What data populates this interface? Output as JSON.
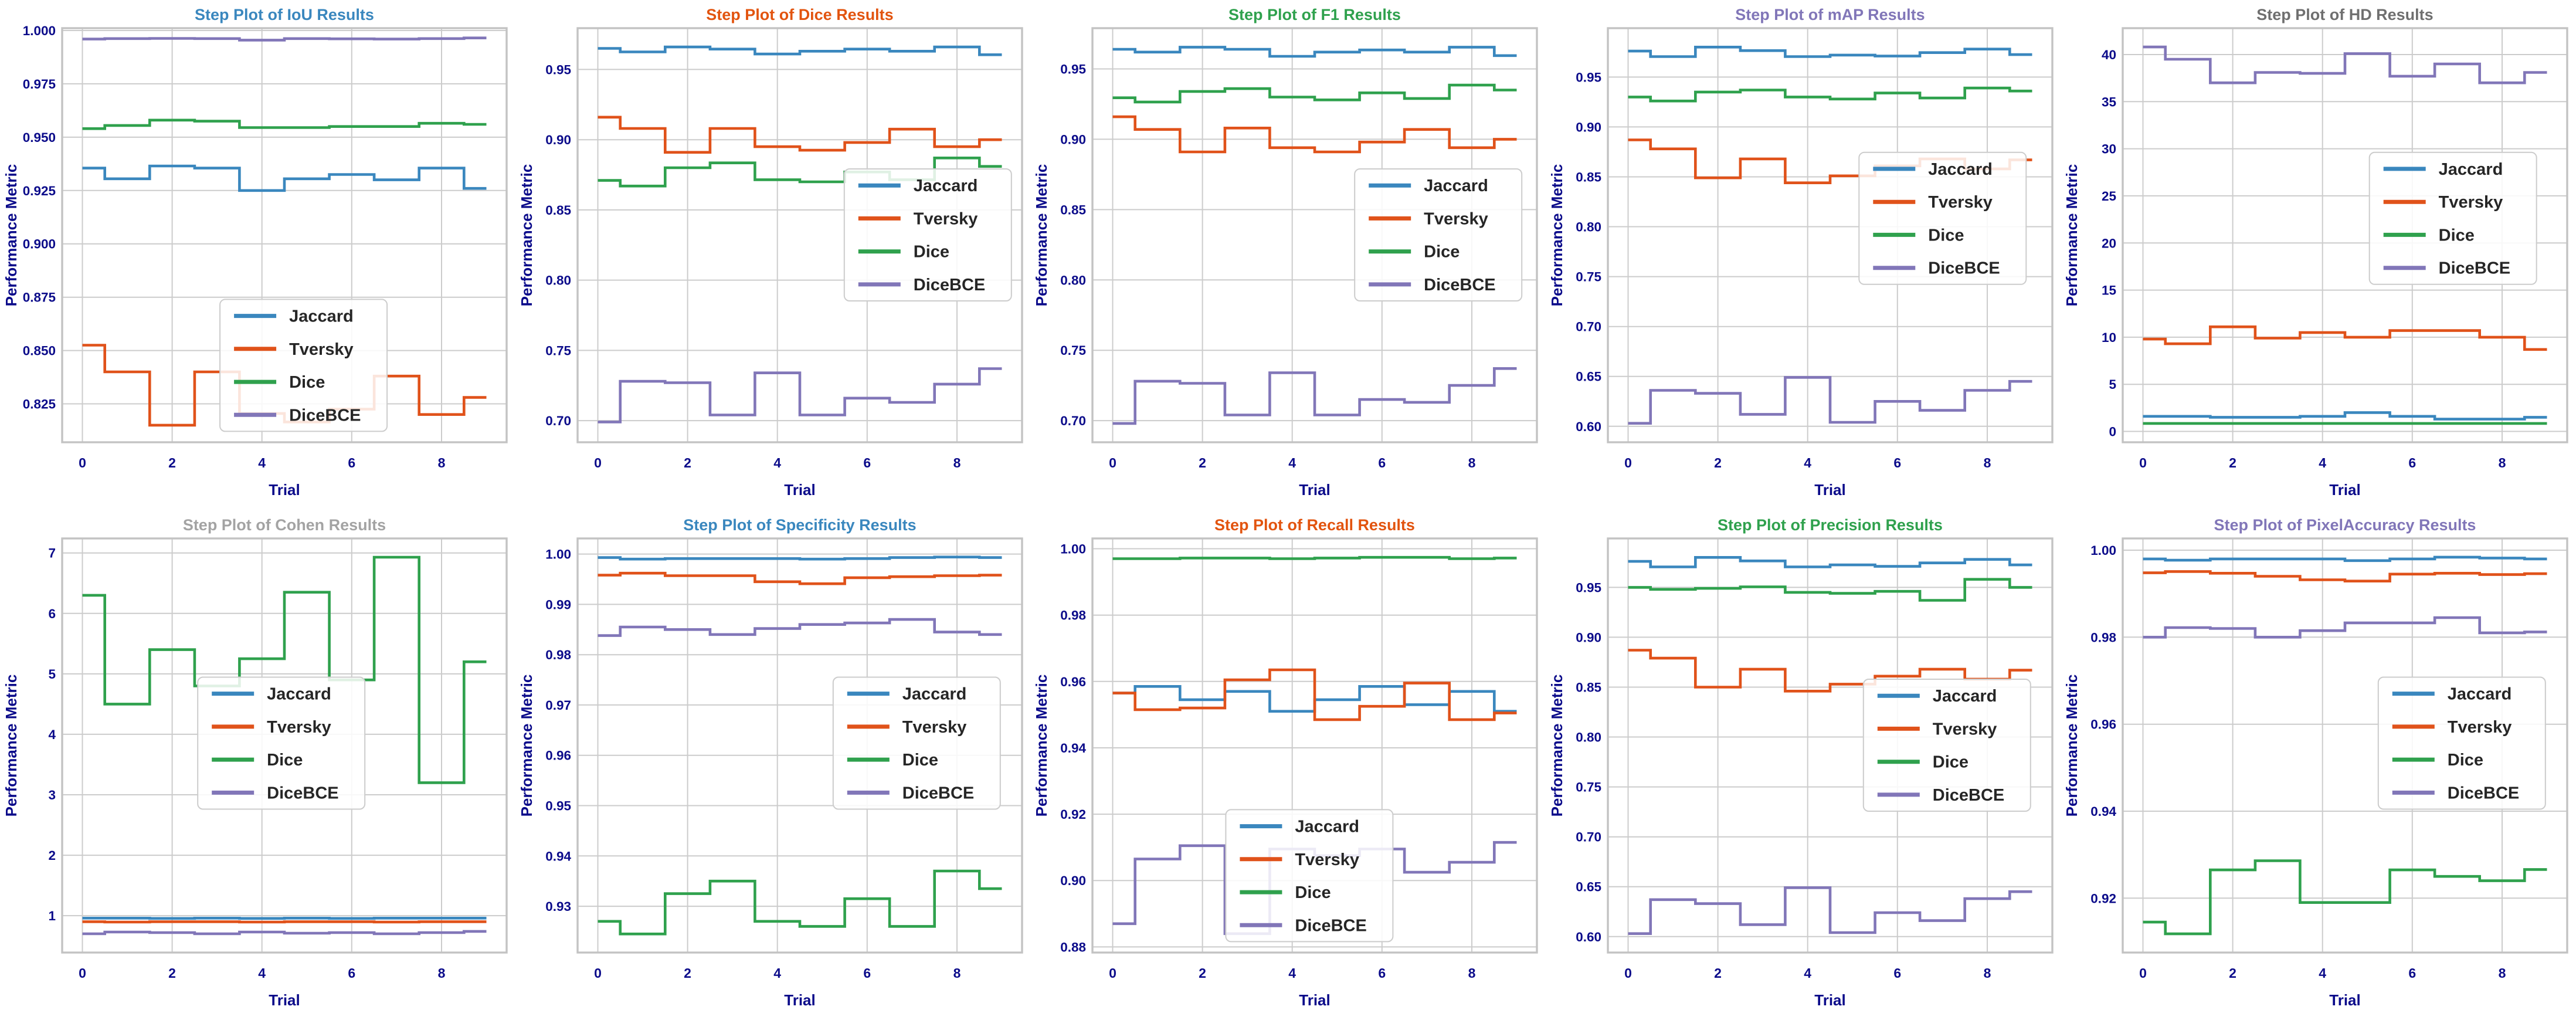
{
  "figure": {
    "background": "#ffffff",
    "grid_color": "#cccccc",
    "spine_color": "#c3c3c3",
    "tick_label_color": "#0b0b8a",
    "axis_label_color": "#0b0b8a",
    "legend_text_color": "#262626",
    "legend_border_color": "#cccccc",
    "legend_background": "rgba(255,255,255,0.85)"
  },
  "axes_labels": {
    "xlabel": "Trial",
    "ylabel": "Performance Metric"
  },
  "legend_entries": [
    "Jaccard",
    "Tversky",
    "Dice",
    "DiceBCE"
  ],
  "series_colors": {
    "Jaccard": "#3a87be",
    "Tversky": "#e0521a",
    "Dice": "#2fa14d",
    "DiceBCE": "#8176b8"
  },
  "chart_data": [
    {
      "type": "step-line",
      "title": "Step Plot of IoU Results",
      "title_color": "#3a87be",
      "xlabel": "Trial",
      "ylabel": "Performance Metric",
      "x": [
        0,
        1,
        2,
        3,
        4,
        5,
        6,
        7,
        8,
        9
      ],
      "xlim": [
        -0.45,
        9.45
      ],
      "xticks": [
        0,
        2,
        4,
        6,
        8
      ],
      "ylim": [
        0.807,
        1.0011
      ],
      "yticks": [
        0.825,
        0.85,
        0.875,
        0.9,
        0.925,
        0.95,
        0.975,
        1.0
      ],
      "ytick_decimals": 3,
      "grid": true,
      "legend_pos": {
        "x": 0.355,
        "y": 0.655
      },
      "series": [
        {
          "name": "Jaccard",
          "values": [
            0.9355,
            0.9305,
            0.9365,
            0.9355,
            0.925,
            0.9305,
            0.9325,
            0.93,
            0.9355,
            0.926
          ]
        },
        {
          "name": "Tversky",
          "values": [
            0.8525,
            0.84,
            0.815,
            0.84,
            0.8205,
            0.8165,
            0.8225,
            0.838,
            0.82,
            0.828
          ]
        },
        {
          "name": "Dice",
          "values": [
            0.954,
            0.9555,
            0.958,
            0.9575,
            0.9545,
            0.9545,
            0.955,
            0.955,
            0.9565,
            0.956
          ]
        },
        {
          "name": "DiceBCE",
          "values": [
            0.996,
            0.9962,
            0.9963,
            0.9962,
            0.9955,
            0.9962,
            0.9961,
            0.996,
            0.9962,
            0.9965
          ]
        }
      ]
    },
    {
      "type": "step-line",
      "title": "Step Plot of Dice Results",
      "title_color": "#e2540f",
      "xlabel": "Trial",
      "ylabel": "Performance Metric",
      "x": [
        0,
        1,
        2,
        3,
        4,
        5,
        6,
        7,
        8,
        9
      ],
      "xlim": [
        -0.45,
        9.45
      ],
      "xticks": [
        0,
        2,
        4,
        6,
        8
      ],
      "ylim": [
        0.6846,
        0.9794
      ],
      "yticks": [
        0.7,
        0.75,
        0.8,
        0.85,
        0.9,
        0.95
      ],
      "ytick_decimals": 2,
      "grid": true,
      "legend_pos": {
        "x": 0.6,
        "y": 0.34
      },
      "series": [
        {
          "name": "Jaccard",
          "values": [
            0.965,
            0.9625,
            0.966,
            0.9645,
            0.961,
            0.963,
            0.9645,
            0.963,
            0.966,
            0.9605
          ]
        },
        {
          "name": "Tversky",
          "values": [
            0.916,
            0.908,
            0.891,
            0.908,
            0.895,
            0.8925,
            0.898,
            0.9075,
            0.895,
            0.9
          ]
        },
        {
          "name": "Dice",
          "values": [
            0.871,
            0.867,
            0.88,
            0.8835,
            0.8715,
            0.87,
            0.877,
            0.8715,
            0.887,
            0.881
          ]
        },
        {
          "name": "DiceBCE",
          "values": [
            0.699,
            0.728,
            0.727,
            0.704,
            0.734,
            0.704,
            0.716,
            0.713,
            0.726,
            0.737
          ]
        }
      ]
    },
    {
      "type": "step-line",
      "title": "Step Plot of F1 Results",
      "title_color": "#2fa14d",
      "xlabel": "Trial",
      "ylabel": "Performance Metric",
      "x": [
        0,
        1,
        2,
        3,
        4,
        5,
        6,
        7,
        8,
        9
      ],
      "xlim": [
        -0.45,
        9.45
      ],
      "xticks": [
        0,
        2,
        4,
        6,
        8
      ],
      "ylim": [
        0.6846,
        0.979
      ],
      "yticks": [
        0.7,
        0.75,
        0.8,
        0.85,
        0.9,
        0.95
      ],
      "ytick_decimals": 2,
      "grid": true,
      "legend_pos": {
        "x": 0.59,
        "y": 0.34
      },
      "series": [
        {
          "name": "Jaccard",
          "values": [
            0.964,
            0.962,
            0.9655,
            0.964,
            0.959,
            0.962,
            0.9635,
            0.962,
            0.9655,
            0.9595
          ]
        },
        {
          "name": "Tversky",
          "values": [
            0.916,
            0.907,
            0.891,
            0.908,
            0.894,
            0.891,
            0.898,
            0.907,
            0.894,
            0.9
          ]
        },
        {
          "name": "Dice",
          "values": [
            0.9295,
            0.9265,
            0.934,
            0.936,
            0.93,
            0.928,
            0.933,
            0.929,
            0.9385,
            0.935
          ]
        },
        {
          "name": "DiceBCE",
          "values": [
            0.698,
            0.728,
            0.7265,
            0.704,
            0.734,
            0.704,
            0.715,
            0.713,
            0.725,
            0.737
          ]
        }
      ]
    },
    {
      "type": "step-line",
      "title": "Step Plot of mAP Results",
      "title_color": "#8176b8",
      "xlabel": "Trial",
      "ylabel": "Performance Metric",
      "x": [
        0,
        1,
        2,
        3,
        4,
        5,
        6,
        7,
        8,
        9
      ],
      "xlim": [
        -0.45,
        9.45
      ],
      "xticks": [
        0,
        2,
        4,
        6,
        8
      ],
      "ylim": [
        0.584,
        0.999
      ],
      "yticks": [
        0.6,
        0.65,
        0.7,
        0.75,
        0.8,
        0.85,
        0.9,
        0.95
      ],
      "ytick_decimals": 2,
      "grid": true,
      "legend_pos": {
        "x": 0.565,
        "y": 0.3
      },
      "series": [
        {
          "name": "Jaccard",
          "values": [
            0.976,
            0.9705,
            0.98,
            0.9765,
            0.9705,
            0.972,
            0.971,
            0.9745,
            0.978,
            0.9725
          ]
        },
        {
          "name": "Tversky",
          "values": [
            0.887,
            0.878,
            0.849,
            0.868,
            0.844,
            0.851,
            0.861,
            0.868,
            0.858,
            0.867
          ]
        },
        {
          "name": "Dice",
          "values": [
            0.93,
            0.926,
            0.935,
            0.937,
            0.93,
            0.928,
            0.934,
            0.929,
            0.939,
            0.936
          ]
        },
        {
          "name": "DiceBCE",
          "values": [
            0.603,
            0.636,
            0.633,
            0.612,
            0.649,
            0.604,
            0.625,
            0.616,
            0.636,
            0.645
          ]
        }
      ]
    },
    {
      "type": "step-line",
      "title": "Step Plot of HD Results",
      "title_color": "#6f6f6f",
      "xlabel": "Trial",
      "ylabel": "Performance Metric",
      "x": [
        0,
        1,
        2,
        3,
        4,
        5,
        6,
        7,
        8,
        9
      ],
      "xlim": [
        -0.45,
        9.45
      ],
      "xticks": [
        0,
        2,
        4,
        6,
        8
      ],
      "ylim": [
        -1.15,
        42.8
      ],
      "yticks": [
        0,
        5,
        10,
        15,
        20,
        25,
        30,
        35,
        40
      ],
      "ytick_decimals": 0,
      "grid": true,
      "legend_pos": {
        "x": 0.555,
        "y": 0.3
      },
      "series": [
        {
          "name": "Jaccard",
          "values": [
            1.6,
            1.6,
            1.5,
            1.5,
            1.6,
            2.0,
            1.6,
            1.3,
            1.3,
            1.5
          ]
        },
        {
          "name": "Tversky",
          "values": [
            9.8,
            9.3,
            11.1,
            9.9,
            10.5,
            10.0,
            10.7,
            10.7,
            10.0,
            8.7
          ]
        },
        {
          "name": "Dice",
          "values": [
            0.85,
            0.85,
            0.85,
            0.85,
            0.85,
            0.85,
            0.85,
            0.85,
            0.85,
            0.85
          ]
        },
        {
          "name": "DiceBCE",
          "values": [
            40.8,
            39.5,
            37.0,
            38.1,
            38.0,
            40.1,
            37.7,
            39.0,
            37.0,
            38.1
          ]
        }
      ]
    },
    {
      "type": "step-line",
      "title": "Step Plot of Cohen Results",
      "title_color": "#a3a3a3",
      "xlabel": "Trial",
      "ylabel": "Performance Metric",
      "x": [
        0,
        1,
        2,
        3,
        4,
        5,
        6,
        7,
        8,
        9
      ],
      "xlim": [
        -0.45,
        9.45
      ],
      "xticks": [
        0,
        2,
        4,
        6,
        8
      ],
      "ylim": [
        0.39,
        7.24
      ],
      "yticks": [
        1,
        2,
        3,
        4,
        5,
        6,
        7
      ],
      "ytick_decimals": 0,
      "grid": true,
      "legend_pos": {
        "x": 0.305,
        "y": 0.335
      },
      "series": [
        {
          "name": "Jaccard",
          "values": [
            0.96,
            0.96,
            0.955,
            0.96,
            0.955,
            0.96,
            0.955,
            0.96,
            0.96,
            0.96
          ]
        },
        {
          "name": "Tversky",
          "values": [
            0.9,
            0.895,
            0.9,
            0.9,
            0.895,
            0.9,
            0.9,
            0.895,
            0.9,
            0.9
          ]
        },
        {
          "name": "Dice",
          "values": [
            6.3,
            4.5,
            5.4,
            4.8,
            5.25,
            6.35,
            4.9,
            6.93,
            3.2,
            5.2
          ]
        },
        {
          "name": "DiceBCE",
          "values": [
            0.7,
            0.73,
            0.72,
            0.7,
            0.73,
            0.71,
            0.72,
            0.7,
            0.72,
            0.74
          ]
        }
      ]
    },
    {
      "type": "step-line",
      "title": "Step Plot of Specificity Results",
      "title_color": "#3a87be",
      "xlabel": "Trial",
      "ylabel": "Performance Metric",
      "x": [
        0,
        1,
        2,
        3,
        4,
        5,
        6,
        7,
        8,
        9
      ],
      "xlim": [
        -0.45,
        9.45
      ],
      "xticks": [
        0,
        2,
        4,
        6,
        8
      ],
      "ylim": [
        0.9208,
        1.0031
      ],
      "yticks": [
        0.93,
        0.94,
        0.95,
        0.96,
        0.97,
        0.98,
        0.99,
        1.0
      ],
      "ytick_decimals": 2,
      "grid": true,
      "legend_pos": {
        "x": 0.575,
        "y": 0.335
      },
      "series": [
        {
          "name": "Jaccard",
          "values": [
            0.9993,
            0.999,
            0.9991,
            0.9991,
            0.9991,
            0.999,
            0.9991,
            0.9993,
            0.9994,
            0.9993
          ]
        },
        {
          "name": "Tversky",
          "values": [
            0.9958,
            0.9962,
            0.9957,
            0.9957,
            0.9945,
            0.9941,
            0.9953,
            0.9955,
            0.9957,
            0.9958
          ]
        },
        {
          "name": "Dice",
          "values": [
            0.927,
            0.9245,
            0.9325,
            0.935,
            0.927,
            0.926,
            0.9315,
            0.926,
            0.937,
            0.9335
          ]
        },
        {
          "name": "DiceBCE",
          "values": [
            0.9838,
            0.9855,
            0.985,
            0.984,
            0.9852,
            0.986,
            0.9863,
            0.987,
            0.9845,
            0.984
          ]
        }
      ]
    },
    {
      "type": "step-line",
      "title": "Step Plot of Recall Results",
      "title_color": "#e2540f",
      "xlabel": "Trial",
      "ylabel": "Performance Metric",
      "x": [
        0,
        1,
        2,
        3,
        4,
        5,
        6,
        7,
        8,
        9
      ],
      "xlim": [
        -0.45,
        9.45
      ],
      "xticks": [
        0,
        2,
        4,
        6,
        8
      ],
      "ylim": [
        0.8783,
        1.0031
      ],
      "yticks": [
        0.88,
        0.9,
        0.92,
        0.94,
        0.96,
        0.98,
        1.0
      ],
      "ytick_decimals": 2,
      "grid": true,
      "legend_pos": {
        "x": 0.3,
        "y": 0.655
      },
      "series": [
        {
          "name": "Jaccard",
          "values": [
            0.9565,
            0.9585,
            0.9545,
            0.957,
            0.951,
            0.9545,
            0.9585,
            0.953,
            0.957,
            0.951
          ]
        },
        {
          "name": "Tversky",
          "values": [
            0.9565,
            0.9515,
            0.952,
            0.9605,
            0.9635,
            0.9485,
            0.9525,
            0.9595,
            0.9485,
            0.9505
          ]
        },
        {
          "name": "Dice",
          "values": [
            0.997,
            0.997,
            0.9972,
            0.9972,
            0.997,
            0.9972,
            0.9974,
            0.9974,
            0.997,
            0.9972
          ]
        },
        {
          "name": "DiceBCE",
          "values": [
            0.887,
            0.9065,
            0.9105,
            0.884,
            0.9095,
            0.9075,
            0.9095,
            0.9025,
            0.9055,
            0.9115
          ]
        }
      ]
    },
    {
      "type": "step-line",
      "title": "Step Plot of Precision Results",
      "title_color": "#2fa14d",
      "xlabel": "Trial",
      "ylabel": "Performance Metric",
      "x": [
        0,
        1,
        2,
        3,
        4,
        5,
        6,
        7,
        8,
        9
      ],
      "xlim": [
        -0.45,
        9.45
      ],
      "xticks": [
        0,
        2,
        4,
        6,
        8
      ],
      "ylim": [
        0.584,
        0.999
      ],
      "yticks": [
        0.6,
        0.65,
        0.7,
        0.75,
        0.8,
        0.85,
        0.9,
        0.95
      ],
      "ytick_decimals": 2,
      "grid": true,
      "legend_pos": {
        "x": 0.575,
        "y": 0.34
      },
      "series": [
        {
          "name": "Jaccard",
          "values": [
            0.976,
            0.9705,
            0.98,
            0.9765,
            0.9705,
            0.9725,
            0.971,
            0.9745,
            0.978,
            0.9725
          ]
        },
        {
          "name": "Tversky",
          "values": [
            0.887,
            0.879,
            0.85,
            0.868,
            0.846,
            0.853,
            0.861,
            0.868,
            0.858,
            0.867
          ]
        },
        {
          "name": "Dice",
          "values": [
            0.95,
            0.948,
            0.949,
            0.9505,
            0.945,
            0.944,
            0.946,
            0.937,
            0.958,
            0.95
          ]
        },
        {
          "name": "DiceBCE",
          "values": [
            0.603,
            0.637,
            0.633,
            0.612,
            0.649,
            0.604,
            0.624,
            0.616,
            0.638,
            0.645
          ]
        }
      ]
    },
    {
      "type": "step-line",
      "title": "Step Plot of PixelAccuracy Results",
      "title_color": "#8176b8",
      "xlabel": "Trial",
      "ylabel": "Performance Metric",
      "x": [
        0,
        1,
        2,
        3,
        4,
        5,
        6,
        7,
        8,
        9
      ],
      "xlim": [
        -0.45,
        9.45
      ],
      "xticks": [
        0,
        2,
        4,
        6,
        8
      ],
      "ylim": [
        0.9075,
        1.0027
      ],
      "yticks": [
        0.92,
        0.94,
        0.96,
        0.98,
        1.0
      ],
      "ytick_decimals": 2,
      "grid": true,
      "legend_pos": {
        "x": 0.575,
        "y": 0.335
      },
      "series": [
        {
          "name": "Jaccard",
          "values": [
            0.998,
            0.9977,
            0.998,
            0.998,
            0.998,
            0.9976,
            0.998,
            0.9984,
            0.9982,
            0.998
          ]
        },
        {
          "name": "Tversky",
          "values": [
            0.9948,
            0.9951,
            0.9947,
            0.994,
            0.9932,
            0.9929,
            0.9945,
            0.9947,
            0.9944,
            0.9946
          ]
        },
        {
          "name": "Dice",
          "values": [
            0.9145,
            0.9118,
            0.9265,
            0.9286,
            0.919,
            0.919,
            0.9265,
            0.925,
            0.924,
            0.9266
          ]
        },
        {
          "name": "DiceBCE",
          "values": [
            0.98,
            0.9822,
            0.982,
            0.98,
            0.9815,
            0.9833,
            0.9833,
            0.9845,
            0.981,
            0.9812
          ]
        }
      ]
    }
  ]
}
